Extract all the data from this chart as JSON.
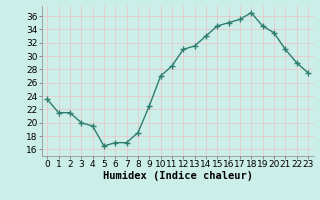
{
  "x": [
    0,
    1,
    2,
    3,
    4,
    5,
    6,
    7,
    8,
    9,
    10,
    11,
    12,
    13,
    14,
    15,
    16,
    17,
    18,
    19,
    20,
    21,
    22,
    23
  ],
  "y": [
    23.5,
    21.5,
    21.5,
    20.0,
    19.5,
    16.5,
    17.0,
    17.0,
    18.5,
    22.5,
    27.0,
    28.5,
    31.0,
    31.5,
    33.0,
    34.5,
    35.0,
    35.5,
    36.5,
    34.5,
    33.5,
    31.0,
    29.0,
    27.5
  ],
  "line_color": "#2e7d6e",
  "marker": "+",
  "marker_size": 4,
  "marker_lw": 1.0,
  "bg_color": "#cceee8",
  "grid_color": "#e8c8c8",
  "xlabel": "Humidex (Indice chaleur)",
  "xlim": [
    -0.5,
    23.5
  ],
  "ylim": [
    15.0,
    37.5
  ],
  "yticks": [
    16,
    18,
    20,
    22,
    24,
    26,
    28,
    30,
    32,
    34,
    36
  ],
  "xtick_labels": [
    "0",
    "1",
    "2",
    "3",
    "4",
    "5",
    "6",
    "7",
    "8",
    "9",
    "10",
    "11",
    "12",
    "13",
    "14",
    "15",
    "16",
    "17",
    "18",
    "19",
    "20",
    "21",
    "22",
    "23"
  ],
  "tick_fontsize": 6.5,
  "label_fontsize": 7.5
}
